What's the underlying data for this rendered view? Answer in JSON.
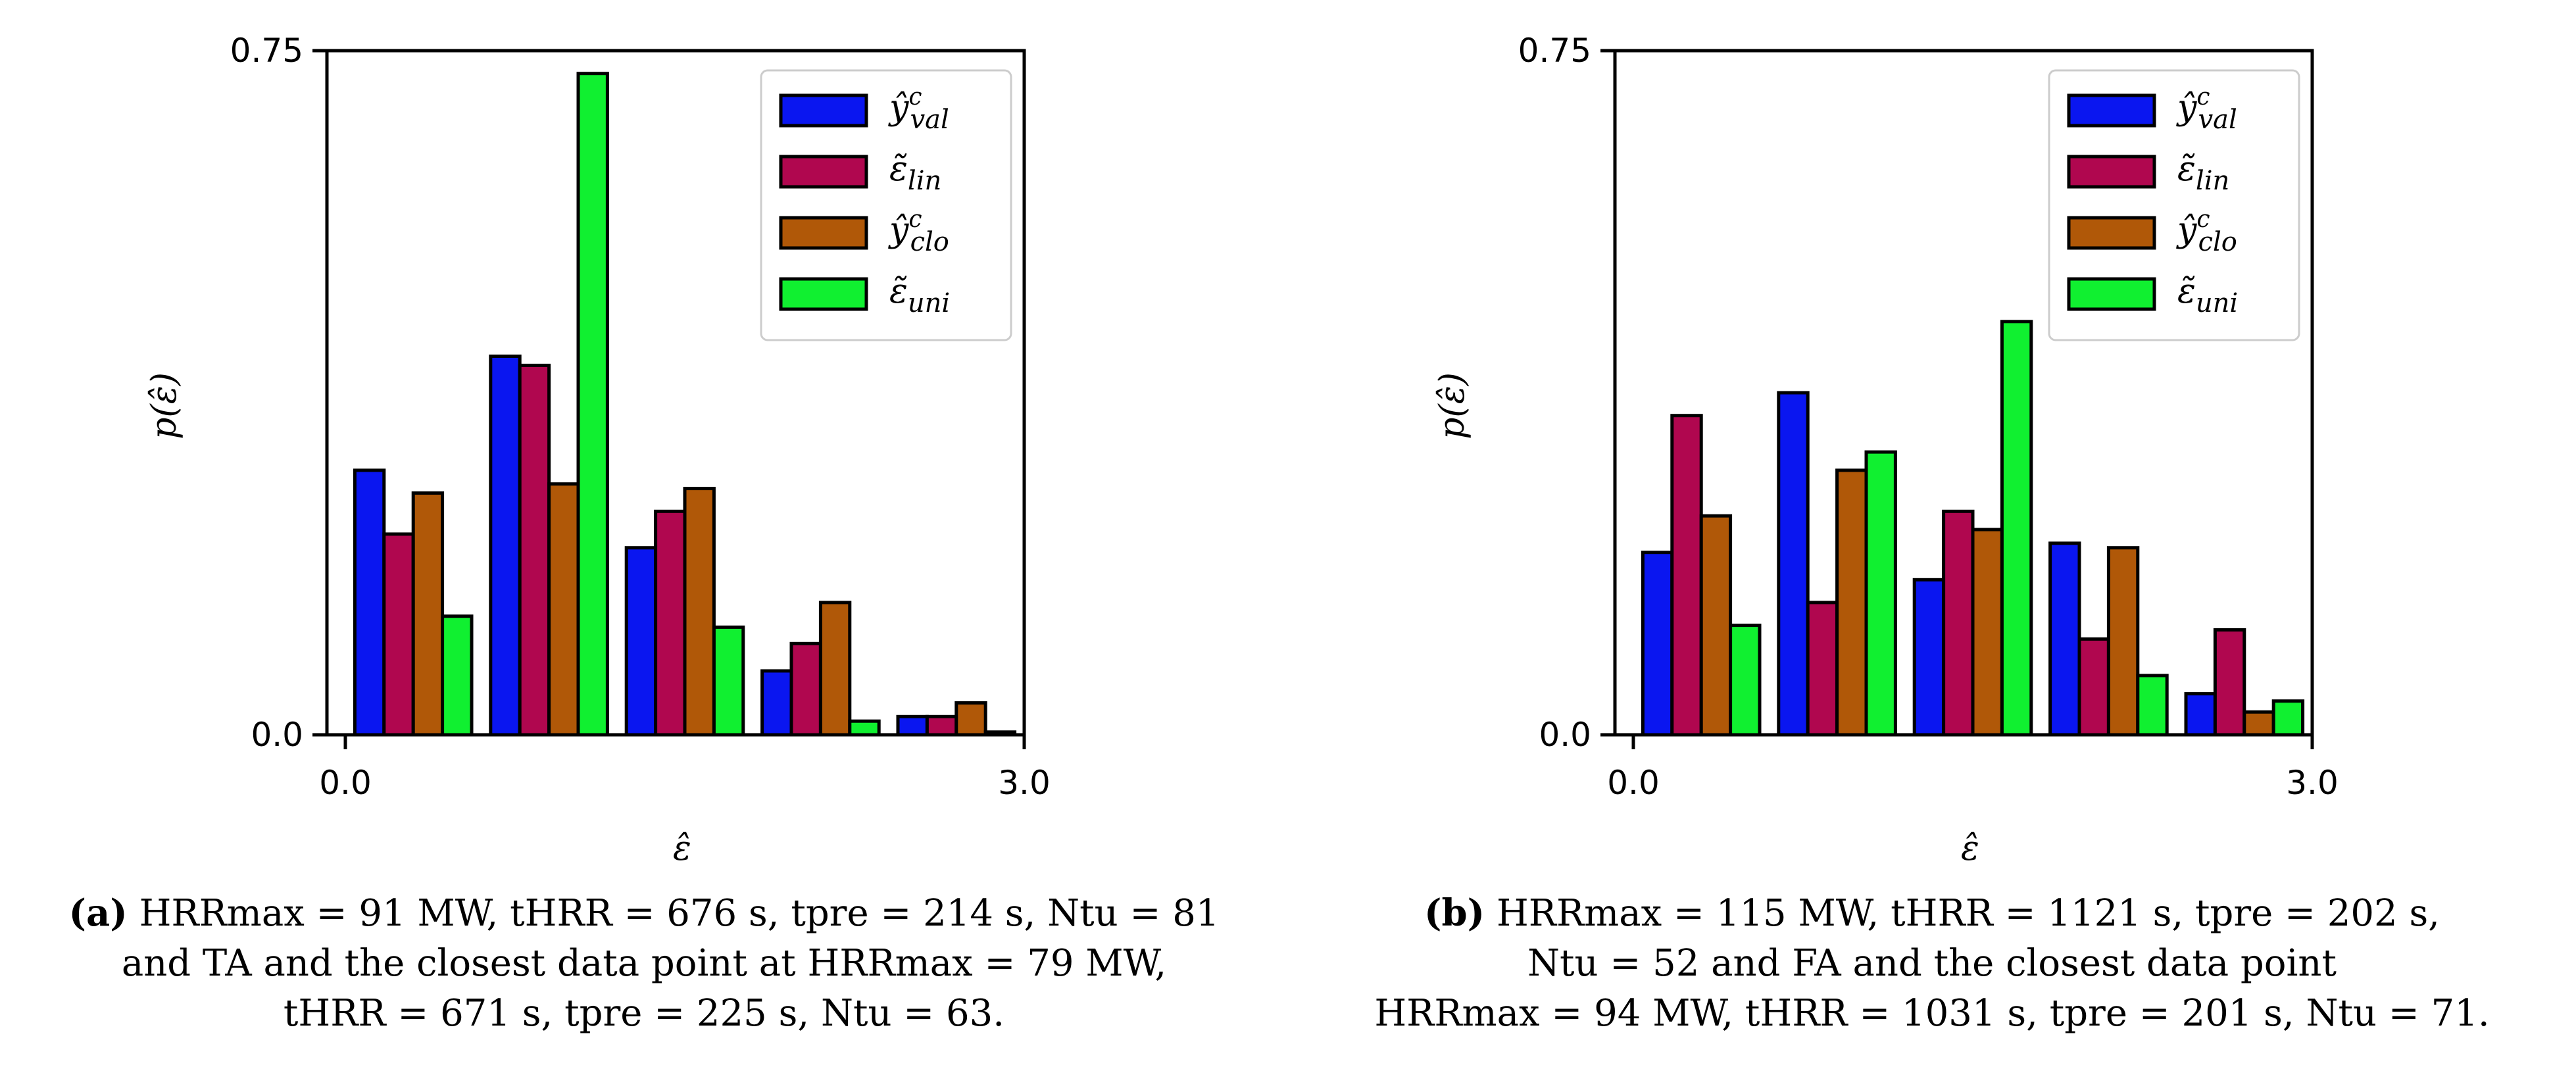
{
  "legend": {
    "entries": [
      "ŷ^c_val",
      "ε̃_lin",
      "ŷ^c_clo",
      "ε̃_uni"
    ],
    "display": [
      {
        "base": "ŷ",
        "sup": "c",
        "sub": "val"
      },
      {
        "base": "ε̃",
        "sup": "",
        "sub": "lin"
      },
      {
        "base": "ŷ",
        "sup": "c",
        "sub": "clo"
      },
      {
        "base": "ε̃",
        "sup": "",
        "sub": "uni"
      }
    ],
    "colors": [
      "#0a16f0",
      "#b0074f",
      "#b05808",
      "#10f030"
    ]
  },
  "chart_data": [
    {
      "type": "bar",
      "title": "",
      "xlabel": "ε̂",
      "ylabel": "p(ε̂)",
      "xlim": [
        0.0,
        3.0
      ],
      "ylim": [
        0.0,
        0.75
      ],
      "xticks": [
        "0.0",
        "3.0"
      ],
      "yticks": [
        "0.0",
        "0.75"
      ],
      "bin_edges": [
        0.0,
        0.6,
        1.2,
        1.8,
        2.4,
        3.0
      ],
      "series": [
        {
          "name": "ŷ^c_val",
          "color": "#0a16f0",
          "values": [
            0.29,
            0.415,
            0.205,
            0.07,
            0.02
          ]
        },
        {
          "name": "ε̃_lin",
          "color": "#b0074f",
          "values": [
            0.22,
            0.405,
            0.245,
            0.1,
            0.02
          ]
        },
        {
          "name": "ŷ^c_clo",
          "color": "#b05808",
          "values": [
            0.265,
            0.275,
            0.27,
            0.145,
            0.035
          ]
        },
        {
          "name": "ε̃_uni",
          "color": "#10f030",
          "values": [
            0.13,
            0.725,
            0.118,
            0.015,
            0.003
          ]
        }
      ]
    },
    {
      "type": "bar",
      "title": "",
      "xlabel": "ε̂",
      "ylabel": "p(ε̂)",
      "xlim": [
        0.0,
        3.0
      ],
      "ylim": [
        0.0,
        0.75
      ],
      "xticks": [
        "0.0",
        "3.0"
      ],
      "yticks": [
        "0.0",
        "0.75"
      ],
      "bin_edges": [
        0.0,
        0.6,
        1.2,
        1.8,
        2.4,
        3.0
      ],
      "series": [
        {
          "name": "ŷ^c_val",
          "color": "#0a16f0",
          "values": [
            0.2,
            0.375,
            0.17,
            0.21,
            0.045
          ]
        },
        {
          "name": "ε̃_lin",
          "color": "#b0074f",
          "values": [
            0.35,
            0.145,
            0.245,
            0.105,
            0.115
          ]
        },
        {
          "name": "ŷ^c_clo",
          "color": "#b05808",
          "values": [
            0.24,
            0.29,
            0.225,
            0.205,
            0.025
          ]
        },
        {
          "name": "ε̃_uni",
          "color": "#10f030",
          "values": [
            0.12,
            0.31,
            0.453,
            0.065,
            0.037
          ]
        }
      ]
    }
  ],
  "captions": {
    "a": {
      "tag": "(a)",
      "line1": "HRRmax = 91 MW, tHRR = 676 s, tpre = 214 s, Ntu = 81",
      "line2": "and TA and the closest data point at HRRmax = 79 MW,",
      "line3": "tHRR = 671 s, tpre = 225 s, Ntu = 63."
    },
    "b": {
      "tag": "(b)",
      "line1": "HRRmax = 115 MW, tHRR = 1121 s, tpre = 202 s,",
      "line2": "Ntu = 52 and FA and the closest data point",
      "line3": "HRRmax = 94 MW, tHRR = 1031 s, tpre = 201 s, Ntu = 71."
    }
  }
}
